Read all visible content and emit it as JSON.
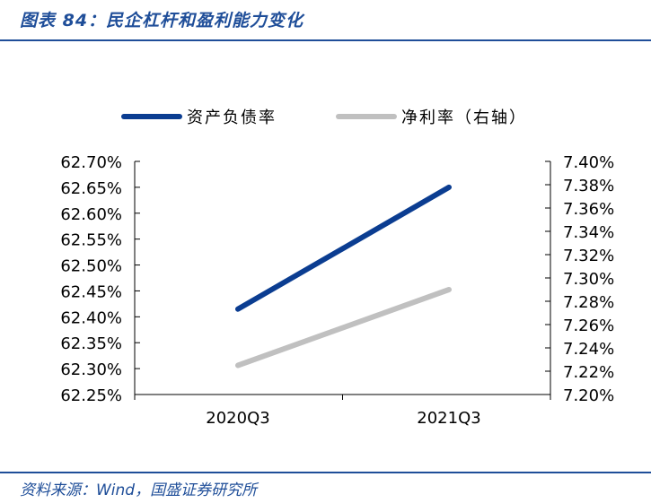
{
  "title": "图表 84：民企杠杆和盈利能力变化",
  "source": "资料来源：Wind，国盛证券研究所",
  "chart_data": {
    "type": "line",
    "categories": [
      "2020Q3",
      "2021Q3"
    ],
    "series": [
      {
        "name": "资产负债率",
        "axis": "left",
        "color": "#0b3d91",
        "values": [
          62.415,
          62.65
        ]
      },
      {
        "name": "净利率（右轴）",
        "axis": "right",
        "color": "#c0c0c0",
        "values": [
          7.225,
          7.29
        ]
      }
    ],
    "left_axis": {
      "ylim": [
        62.25,
        62.7
      ],
      "ticks": [
        "62.70%",
        "62.65%",
        "62.60%",
        "62.55%",
        "62.50%",
        "62.45%",
        "62.40%",
        "62.35%",
        "62.30%",
        "62.25%"
      ],
      "tick_values": [
        62.7,
        62.65,
        62.6,
        62.55,
        62.5,
        62.45,
        62.4,
        62.35,
        62.3,
        62.25
      ]
    },
    "right_axis": {
      "ylim": [
        7.2,
        7.4
      ],
      "ticks": [
        "7.40%",
        "7.38%",
        "7.36%",
        "7.34%",
        "7.32%",
        "7.30%",
        "7.28%",
        "7.26%",
        "7.24%",
        "7.22%",
        "7.20%"
      ],
      "tick_values": [
        7.4,
        7.38,
        7.36,
        7.34,
        7.32,
        7.3,
        7.28,
        7.26,
        7.24,
        7.22,
        7.2
      ]
    },
    "legend_position": "top",
    "grid": false
  }
}
